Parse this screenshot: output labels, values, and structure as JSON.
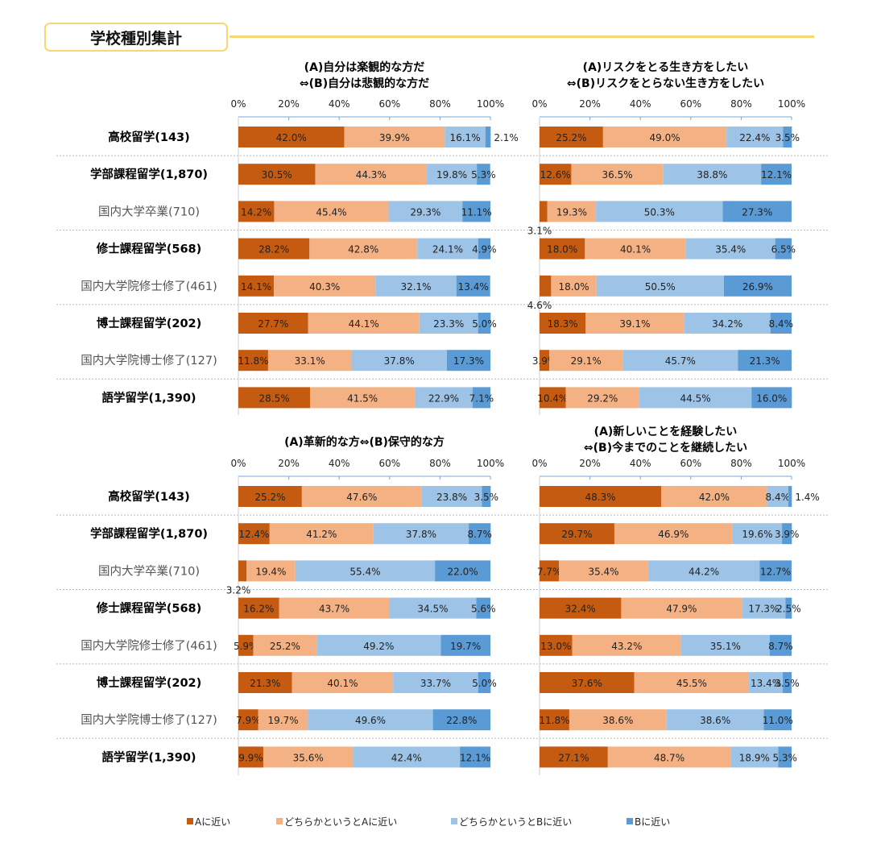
{
  "header": {
    "title": "学校種別集計"
  },
  "colors": {
    "a": "#C55A11",
    "a_lean": "#F4B183",
    "b_lean": "#9DC3E6",
    "b": "#5B9BD5",
    "accent": "#F7D774"
  },
  "legend": [
    "Aに近い",
    "どちらかというとAに近い",
    "どちらかというとBに近い",
    "Bに近い"
  ],
  "categories": [
    {
      "label": "高校留学(143)",
      "bold": true
    },
    {
      "label": "学部課程留学(1,870)",
      "bold": true
    },
    {
      "label": "国内大学卒業(710)",
      "bold": false
    },
    {
      "label": "修士課程留学(568)",
      "bold": true
    },
    {
      "label": "国内大学院修士修了(461)",
      "bold": false
    },
    {
      "label": "博士課程留学(202)",
      "bold": true
    },
    {
      "label": "国内大学院博士修了(127)",
      "bold": false
    },
    {
      "label": "語学留学(1,390)",
      "bold": true
    }
  ],
  "chart_data": [
    {
      "type": "bar",
      "orientation": "horizontal",
      "stacked": "100%",
      "title": [
        "(A)自分は楽観的な方だ",
        "⇔(B)自分は悲観的な方だ"
      ],
      "xticks": [
        "0%",
        "20%",
        "40%",
        "60%",
        "80%",
        "100%"
      ],
      "xlim": [
        0,
        100
      ],
      "values": [
        [
          42.0,
          39.9,
          16.1,
          2.1
        ],
        [
          30.5,
          44.3,
          19.8,
          5.3
        ],
        [
          14.2,
          45.4,
          29.3,
          11.1
        ],
        [
          28.2,
          42.8,
          24.1,
          4.9
        ],
        [
          14.1,
          40.3,
          32.1,
          13.4
        ],
        [
          27.7,
          44.1,
          23.3,
          5.0
        ],
        [
          11.8,
          33.1,
          37.8,
          17.3
        ],
        [
          28.5,
          41.5,
          22.9,
          7.1
        ]
      ]
    },
    {
      "type": "bar",
      "orientation": "horizontal",
      "stacked": "100%",
      "title": [
        "(A)リスクをとる生き方をしたい",
        "⇔(B)リスクをとらない生き方をしたい"
      ],
      "xticks": [
        "0%",
        "20%",
        "40%",
        "60%",
        "80%",
        "100%"
      ],
      "xlim": [
        0,
        100
      ],
      "values": [
        [
          25.2,
          49.0,
          22.4,
          3.5
        ],
        [
          12.6,
          36.5,
          38.8,
          12.1
        ],
        [
          3.1,
          19.3,
          50.3,
          27.3
        ],
        [
          18.0,
          40.1,
          35.4,
          6.5
        ],
        [
          4.6,
          18.0,
          50.5,
          26.9
        ],
        [
          18.3,
          39.1,
          34.2,
          8.4
        ],
        [
          3.9,
          29.1,
          45.7,
          21.3
        ],
        [
          10.4,
          29.2,
          44.5,
          16.0
        ]
      ]
    },
    {
      "type": "bar",
      "orientation": "horizontal",
      "stacked": "100%",
      "title": [
        "(A)革新的な方⇔(B)保守的な方"
      ],
      "xticks": [
        "0%",
        "20%",
        "40%",
        "60%",
        "80%",
        "100%"
      ],
      "xlim": [
        0,
        100
      ],
      "values": [
        [
          25.2,
          47.6,
          23.8,
          3.5
        ],
        [
          12.4,
          41.2,
          37.8,
          8.7
        ],
        [
          3.2,
          19.4,
          55.4,
          22.0
        ],
        [
          16.2,
          43.7,
          34.5,
          5.6
        ],
        [
          5.9,
          25.2,
          49.2,
          19.7
        ],
        [
          21.3,
          40.1,
          33.7,
          5.0
        ],
        [
          7.9,
          19.7,
          49.6,
          22.8
        ],
        [
          9.9,
          35.6,
          42.4,
          12.1
        ]
      ]
    },
    {
      "type": "bar",
      "orientation": "horizontal",
      "stacked": "100%",
      "title": [
        "(A)新しいことを経験したい",
        "⇔(B)今までのことを継続したい"
      ],
      "xticks": [
        "0%",
        "20%",
        "40%",
        "60%",
        "80%",
        "100%"
      ],
      "xlim": [
        0,
        100
      ],
      "values": [
        [
          48.3,
          42.0,
          8.4,
          1.4
        ],
        [
          29.7,
          46.9,
          19.6,
          3.9
        ],
        [
          7.7,
          35.4,
          44.2,
          12.7
        ],
        [
          32.4,
          47.9,
          17.3,
          2.5
        ],
        [
          13.0,
          43.2,
          35.1,
          8.7
        ],
        [
          37.6,
          45.5,
          13.4,
          3.5
        ],
        [
          11.8,
          38.6,
          38.6,
          11.0
        ],
        [
          27.1,
          48.7,
          18.9,
          5.3
        ]
      ]
    }
  ]
}
